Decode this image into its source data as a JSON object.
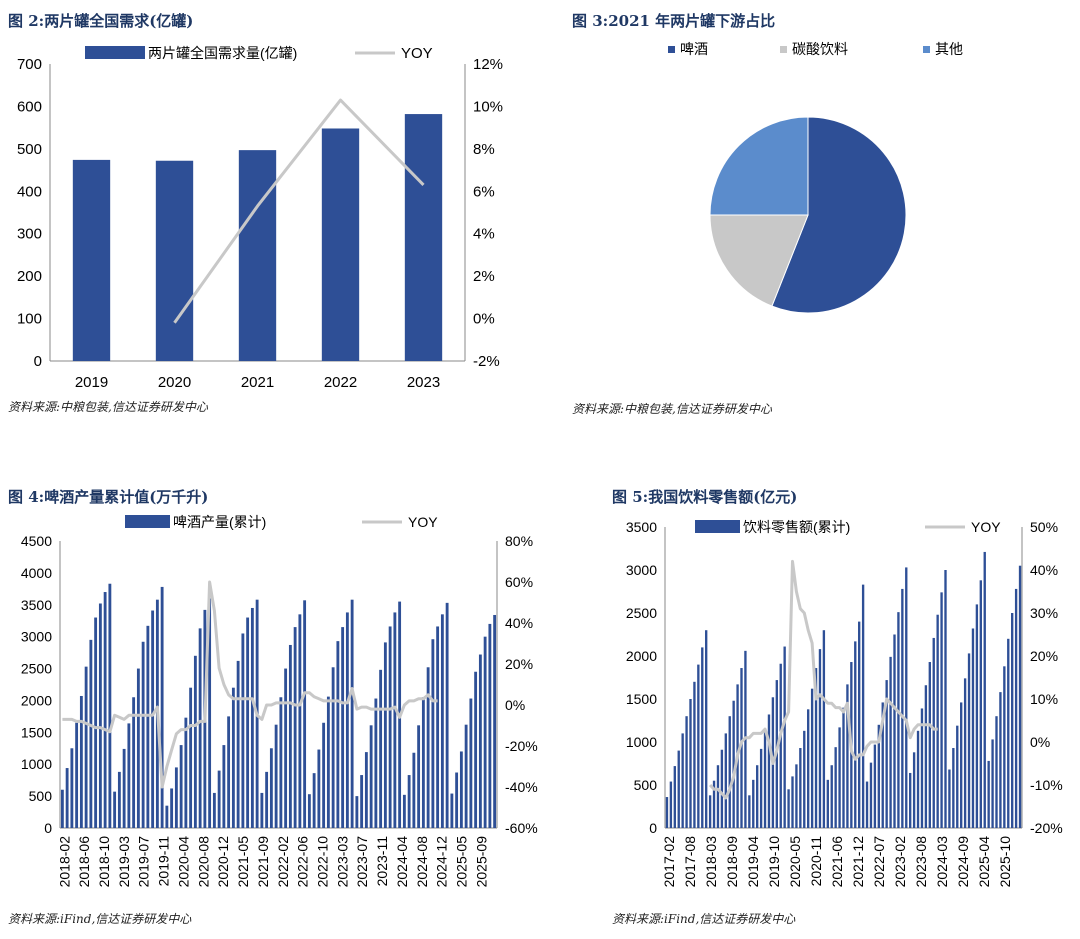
{
  "charts": [
    {
      "id": "fig2",
      "fig_title": "图 2:两片罐全国需求(亿罐)",
      "source": "资料来源:中粮包装,信达证券研发中心"
    },
    {
      "id": "fig3",
      "fig_title": "图 3:2021 年两片罐下游占比",
      "source": "资料来源:中粮包装,信达证券研发中心"
    },
    {
      "id": "fig4",
      "fig_title": "图 4:啤酒产量累计值(万千升)",
      "source": "资料来源:iFind,信达证券研发中心"
    },
    {
      "id": "fig5",
      "fig_title": "图 5:我国饮料零售额(亿元)",
      "source": "资料来源:iFind,信达证券研发中心"
    }
  ],
  "colors": {
    "bar": "#2e4f96",
    "line": "#c8c8c8",
    "pie_beer": "#2e4f96",
    "pie_soda": "#c8c8c8",
    "pie_other": "#5b8ccc"
  },
  "chart_data": [
    {
      "type": "bar",
      "title": "两片罐全国需求(亿罐)",
      "categories": [
        "2019",
        "2020",
        "2021",
        "2022",
        "2023"
      ],
      "series": [
        {
          "name": "两片罐全国需求量(亿罐)",
          "axis": "left",
          "values": [
            474,
            472,
            497,
            548,
            582
          ]
        },
        {
          "name": "YOY",
          "axis": "right",
          "type": "line",
          "values": [
            null,
            -0.2,
            5.3,
            10.3,
            6.3
          ]
        }
      ],
      "ylim": [
        0,
        700
      ],
      "yticks": [
        0,
        100,
        200,
        300,
        400,
        500,
        600,
        700
      ],
      "y2lim": [
        -2,
        12
      ],
      "y2ticks": [
        "-2%",
        "0%",
        "2%",
        "4%",
        "6%",
        "8%",
        "10%",
        "12%"
      ],
      "legend": [
        "两片罐全国需求量(亿罐)",
        "YOY"
      ]
    },
    {
      "type": "pie",
      "title": "2021 年两片罐下游占比",
      "labels": [
        "啤酒",
        "碳酸饮料",
        "其他"
      ],
      "values": [
        56,
        19,
        25
      ]
    },
    {
      "type": "bar",
      "title": "啤酒产量累计值(万千升)",
      "start": "2018-02",
      "ylim": [
        0,
        4500
      ],
      "yticks": [
        0,
        500,
        1000,
        1500,
        2000,
        2500,
        3000,
        3500,
        4000,
        4500
      ],
      "y2lim": [
        -60,
        80
      ],
      "y2ticks": [
        "-60%",
        "-40%",
        "-20%",
        "0%",
        "20%",
        "40%",
        "60%",
        "80%"
      ],
      "x_tick_labels": [
        "2018-02",
        "2018-06",
        "2018-10",
        "2019-03",
        "2019-07",
        "2019-11",
        "2020-04",
        "2020-08",
        "2020-12",
        "2021-05",
        "2021-09",
        "2022-02",
        "2022-06",
        "2022-10",
        "2023-03",
        "2023-07",
        "2023-11",
        "2024-04",
        "2024-08",
        "2024-12",
        "2025-05",
        "2025-09"
      ],
      "legend": [
        "啤酒产量(累计)",
        "YOY"
      ],
      "series": [
        {
          "name": "啤酒产量(累计)",
          "axis": "left",
          "values": [
            600,
            940,
            1250,
            1650,
            2070,
            2530,
            2950,
            3300,
            3520,
            3700,
            3830,
            570,
            880,
            1240,
            1640,
            2050,
            2500,
            2920,
            3170,
            3410,
            3580,
            3780,
            350,
            620,
            950,
            1300,
            1730,
            2200,
            2700,
            3130,
            3420,
            3600,
            550,
            900,
            1300,
            1750,
            2200,
            2620,
            3050,
            3300,
            3450,
            3580,
            550,
            880,
            1250,
            1620,
            2050,
            2500,
            2870,
            3150,
            3350,
            3570,
            530,
            860,
            1230,
            1650,
            2060,
            2520,
            2930,
            3150,
            3380,
            3580,
            500,
            830,
            1190,
            1610,
            2030,
            2480,
            2910,
            3160,
            3380,
            3550,
            520,
            830,
            1180,
            1610,
            2050,
            2520,
            2960,
            3160,
            3350,
            3530,
            540,
            870,
            1200,
            1620,
            2030,
            2450,
            2720,
            3000,
            3200,
            3340
          ]
        },
        {
          "name": "YOY",
          "axis": "right",
          "type": "line",
          "values": [
            -7,
            -7,
            -7,
            -8,
            -8,
            -9,
            -10,
            -11,
            -11,
            -12,
            -13,
            -5,
            -6,
            -7,
            -5,
            -5,
            -5,
            -5,
            -5,
            -5,
            -1,
            -40,
            -30,
            -22,
            -14,
            -12,
            -12,
            -10,
            -10,
            -8,
            -8,
            60,
            46,
            18,
            10,
            5,
            3,
            3,
            3,
            3,
            3,
            -5,
            -7,
            0,
            0,
            1,
            1,
            1,
            1,
            0,
            0,
            6,
            6,
            4,
            3,
            2,
            2,
            2,
            2,
            1,
            1,
            8,
            -2,
            -1,
            -1,
            -2,
            -2,
            -2,
            -2,
            -2,
            -1,
            -6,
            0,
            2,
            2,
            3,
            3,
            5,
            2,
            2
          ]
        }
      ]
    },
    {
      "type": "bar",
      "title": "我国饮料零售额(亿元)",
      "start": "2017-02",
      "ylim": [
        0,
        3500
      ],
      "yticks": [
        0,
        500,
        1000,
        1500,
        2000,
        2500,
        3000,
        3500
      ],
      "y2lim": [
        -20,
        50
      ],
      "y2ticks": [
        "-20%",
        "-10%",
        "0%",
        "10%",
        "20%",
        "30%",
        "40%",
        "50%"
      ],
      "x_tick_labels": [
        "2017-02",
        "2017-08",
        "2018-03",
        "2018-09",
        "2019-04",
        "2019-10",
        "2020-05",
        "2020-11",
        "2021-06",
        "2021-12",
        "2022-07",
        "2023-02",
        "2023-08",
        "2024-03",
        "2024-09",
        "2025-04",
        "2025-10"
      ],
      "legend": [
        "饮料零售额(累计)",
        "YOY"
      ],
      "series": [
        {
          "name": "饮料零售额(累计)",
          "axis": "left",
          "values": [
            360,
            540,
            720,
            900,
            1100,
            1300,
            1500,
            1700,
            1900,
            2100,
            2300,
            380,
            550,
            730,
            910,
            1100,
            1300,
            1480,
            1670,
            1860,
            2060,
            380,
            560,
            730,
            920,
            1110,
            1320,
            1520,
            1720,
            1910,
            2110,
            450,
            600,
            740,
            930,
            1130,
            1380,
            1620,
            1860,
            2080,
            2300,
            560,
            730,
            940,
            1170,
            1400,
            1670,
            1930,
            2170,
            2400,
            2830,
            540,
            760,
            970,
            1200,
            1460,
            1720,
            1990,
            2250,
            2510,
            2780,
            3030,
            640,
            880,
            1130,
            1390,
            1660,
            1930,
            2210,
            2480,
            2740,
            3000,
            680,
            930,
            1190,
            1460,
            1740,
            2030,
            2320,
            2600,
            2880,
            3210,
            780,
            1030,
            1300,
            1580,
            1880,
            2200,
            2500,
            2780,
            3050
          ]
        },
        {
          "name": "YOY",
          "axis": "right",
          "type": "line",
          "values": [
            null,
            null,
            null,
            null,
            null,
            null,
            null,
            null,
            null,
            null,
            null,
            -10,
            -11,
            -11,
            -12,
            -13,
            -11,
            -8,
            -3,
            0,
            1,
            1,
            2,
            2,
            2,
            3,
            0,
            -5,
            -2,
            2,
            5,
            7,
            42,
            35,
            31,
            30,
            26,
            23,
            10,
            11,
            10,
            9,
            9,
            8,
            8,
            7,
            9,
            -2,
            -4,
            -3,
            -3,
            -1,
            0,
            0,
            0,
            5,
            10,
            9,
            8,
            7,
            6,
            5,
            1,
            3,
            4,
            4,
            4,
            4,
            3,
            3
          ]
        }
      ]
    }
  ]
}
